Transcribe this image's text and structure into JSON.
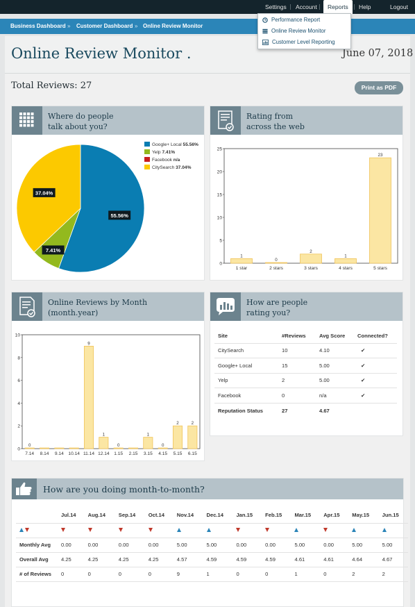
{
  "nav": {
    "items": [
      "Settings",
      "Account",
      "Reports",
      "Help",
      "Logout"
    ],
    "active": "Reports"
  },
  "reports_menu": {
    "items": [
      {
        "label": "Performance Report",
        "icon": "clock-icon"
      },
      {
        "label": "Online Review Monitor",
        "icon": "list-icon"
      },
      {
        "label": "Customer Level Reporting",
        "icon": "chart-icon"
      }
    ]
  },
  "breadcrumb": [
    "Business Dashboard",
    "Customer Dashboard",
    "Online Review Monitor"
  ],
  "breadcrumb_separator": "»",
  "page": {
    "title": "Online Review Monitor .",
    "date": "June 07, 2018",
    "total_reviews": "Total Reviews: 27",
    "print_label": "Print as PDF"
  },
  "panels": {
    "where": {
      "title_line1": "Where do people",
      "title_line2": "talk about you?",
      "icon": "grid-icon"
    },
    "rating": {
      "title_line1": "Rating from",
      "title_line2": "across the web",
      "icon": "checklist-icon"
    },
    "monthly": {
      "title_line1": "Online Reviews by Month",
      "title_line2": "(month.year)",
      "icon": "certificate-icon"
    },
    "how": {
      "title_line1": "How are people",
      "title_line2": "rating you?",
      "icon": "speech-chart-icon"
    },
    "mtm": {
      "title": "How are you doing month-to-month?",
      "icon": "thumbs-up-icon"
    }
  },
  "colors": {
    "google": "#0a7db2",
    "yelp": "#93b91e",
    "facebook": "#c81e1e",
    "citysearch": "#fcc900",
    "bar_fill": "#fbe6a3",
    "bar_stroke": "#f0c45a",
    "up_arrow": "#2b85b8",
    "down_arrow": "#c0392b"
  },
  "chart_data": [
    {
      "type": "pie",
      "slices": [
        {
          "name": "Google+ Local",
          "value": 55.56,
          "display": "55.56%",
          "label": "55.56%"
        },
        {
          "name": "Yelp",
          "value": 7.41,
          "display": "7.41%",
          "label": "7.41%"
        },
        {
          "name": "Facebook",
          "value": 0,
          "display": "n/a",
          "label": ""
        },
        {
          "name": "CitySearch",
          "value": 37.04,
          "display": "37.04%",
          "label": "37.04%"
        }
      ],
      "legend": "top-right"
    },
    {
      "type": "bar",
      "categories": [
        "1 star",
        "2 stars",
        "3 stars",
        "4 stars",
        "5 stars"
      ],
      "values": [
        1,
        0,
        2,
        1,
        23
      ],
      "ylim": [
        0,
        25
      ],
      "yticks": [
        0,
        5,
        10,
        15,
        20,
        25
      ],
      "grid": false
    },
    {
      "type": "bar",
      "categories": [
        "7.14",
        "8.14",
        "9.14",
        "10.14",
        "11.14",
        "12.14",
        "1.15",
        "2.15",
        "3.15",
        "4.15",
        "5.15",
        "6.15"
      ],
      "values": [
        0,
        0,
        0,
        0,
        9,
        1,
        0,
        0,
        1,
        0,
        2,
        2
      ],
      "value_labels": [
        "0",
        "",
        "",
        "",
        "9",
        "1",
        "0",
        "",
        "1",
        "0",
        "2",
        "2"
      ],
      "ylim": [
        0,
        10
      ],
      "yticks": [
        0,
        2,
        4,
        6,
        8,
        10
      ],
      "grid": false
    }
  ],
  "rating_table": {
    "headers": [
      "Site",
      "#Reviews",
      "Avg Score",
      "Connected?"
    ],
    "rows": [
      [
        "CitySearch",
        "10",
        "4.10",
        "✔"
      ],
      [
        "Google+ Local",
        "15",
        "5.00",
        "✔"
      ],
      [
        "Yelp",
        "2",
        "5.00",
        "✔"
      ],
      [
        "Facebook",
        "0",
        "n/a",
        "✔"
      ]
    ],
    "status": [
      "Reputation Status",
      "27",
      "4.67",
      ""
    ]
  },
  "mtm_table": {
    "months": [
      "Jul.14",
      "Aug.14",
      "Sep.14",
      "Oct.14",
      "Nov.14",
      "Dec.14",
      "Jan.15",
      "Feb.15",
      "Mar.15",
      "Apr.15",
      "May.15",
      "Jun.15"
    ],
    "trends": [
      "down",
      "down",
      "down",
      "down",
      "up",
      "up",
      "down",
      "down",
      "up",
      "down",
      "up",
      "up"
    ],
    "rows": [
      {
        "label": "Monthly Avg",
        "values": [
          "0.00",
          "0.00",
          "0.00",
          "0.00",
          "5.00",
          "5.00",
          "0.00",
          "0.00",
          "5.00",
          "0.00",
          "5.00",
          "5.00"
        ]
      },
      {
        "label": "Overall Avg",
        "values": [
          "4.25",
          "4.25",
          "4.25",
          "4.25",
          "4.57",
          "4.59",
          "4.59",
          "4.59",
          "4.61",
          "4.61",
          "4.64",
          "4.67"
        ]
      },
      {
        "label": "# of Reviews",
        "values": [
          "0",
          "0",
          "0",
          "0",
          "9",
          "1",
          "0",
          "0",
          "1",
          "0",
          "2",
          "2"
        ]
      }
    ]
  }
}
